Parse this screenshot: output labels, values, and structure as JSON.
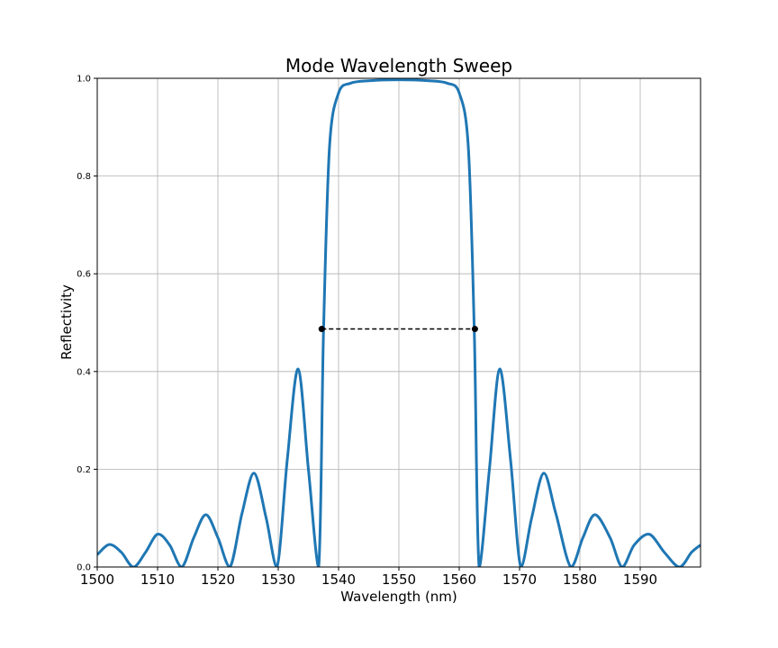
{
  "chart_data": {
    "type": "line",
    "title": "Mode Wavelength Sweep",
    "xlabel": "Wavelength (nm)",
    "ylabel": "Reflectivity",
    "xlim": [
      1500,
      1600
    ],
    "ylim": [
      0,
      1.0
    ],
    "grid": true,
    "x_ticks": [
      "1500",
      "1510",
      "1520",
      "1530",
      "1540",
      "1550",
      "1560",
      "1570",
      "1580",
      "1590"
    ],
    "x_tick_values": [
      1500,
      1510,
      1520,
      1530,
      1540,
      1550,
      1560,
      1570,
      1580,
      1590
    ],
    "y_ticks": [
      "0.0",
      "0.2",
      "0.4",
      "0.6",
      "0.8",
      "1.0"
    ],
    "y_tick_values": [
      0.0,
      0.2,
      0.4,
      0.6,
      0.8,
      1.0
    ],
    "series": [
      {
        "color": "#1f77b4",
        "x": [
          1500,
          1502,
          1504,
          1506,
          1508,
          1510,
          1512,
          1514,
          1516,
          1518,
          1520,
          1522,
          1524,
          1526,
          1528,
          1529.8,
          1531.5,
          1533.3,
          1535,
          1536.7,
          1537.5,
          1538.5,
          1540,
          1542,
          1545,
          1550,
          1555,
          1558,
          1560,
          1561.5,
          1562.5,
          1563.3,
          1565,
          1566.7,
          1568.5,
          1570.2,
          1572,
          1574,
          1576,
          1578.5,
          1580.5,
          1582.5,
          1585,
          1587,
          1589,
          1591.5,
          1594,
          1596.5,
          1598.5,
          1600
        ],
        "y": [
          0.025,
          0.046,
          0.03,
          0.0,
          0.03,
          0.067,
          0.045,
          0.0,
          0.06,
          0.107,
          0.06,
          0.0,
          0.11,
          0.192,
          0.1,
          0.0,
          0.22,
          0.405,
          0.2,
          0.0,
          0.48,
          0.86,
          0.97,
          0.99,
          0.995,
          0.997,
          0.995,
          0.99,
          0.97,
          0.86,
          0.48,
          0.0,
          0.2,
          0.405,
          0.22,
          0.0,
          0.1,
          0.192,
          0.11,
          0.0,
          0.06,
          0.107,
          0.06,
          0.0,
          0.045,
          0.067,
          0.03,
          0.0,
          0.03,
          0.045
        ]
      }
    ],
    "annotations": [
      {
        "type": "dashed-line",
        "x": [
          1537.2,
          1562.6
        ],
        "y": [
          0.487,
          0.487
        ],
        "color": "#000000",
        "marker": "dot"
      }
    ]
  }
}
